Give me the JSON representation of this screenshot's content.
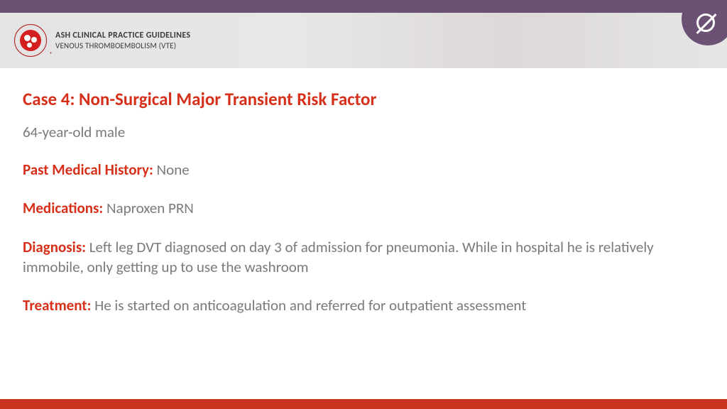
{
  "header": {
    "line1": "ASH CLINICAL PRACTICE GUIDELINES",
    "line2": "VENOUS THROMBOEMBOLISM (VTE)"
  },
  "title": "Case 4: Non-Surgical Major Transient Risk Factor",
  "patient": "64-year-old male",
  "sections": {
    "pmh": {
      "label": "Past Medical History:",
      "text": " None"
    },
    "meds": {
      "label": "Medications:",
      "text": " Naproxen PRN"
    },
    "dx": {
      "label": "Diagnosis:",
      "text": " Left leg DVT diagnosed on day 3 of admission for pneumonia. While in hospital he is relatively immobile, only getting up to use the washroom"
    },
    "tx": {
      "label": "Treatment:",
      "text": " He is started on anticoagulation and referred for outpatient assessment"
    }
  },
  "colors": {
    "purple": "#6b5173",
    "red_accent": "#d6301a",
    "bottom_red": "#c8341f",
    "body_text": "#7a7a7a",
    "header_text": "#3c3c3c"
  }
}
